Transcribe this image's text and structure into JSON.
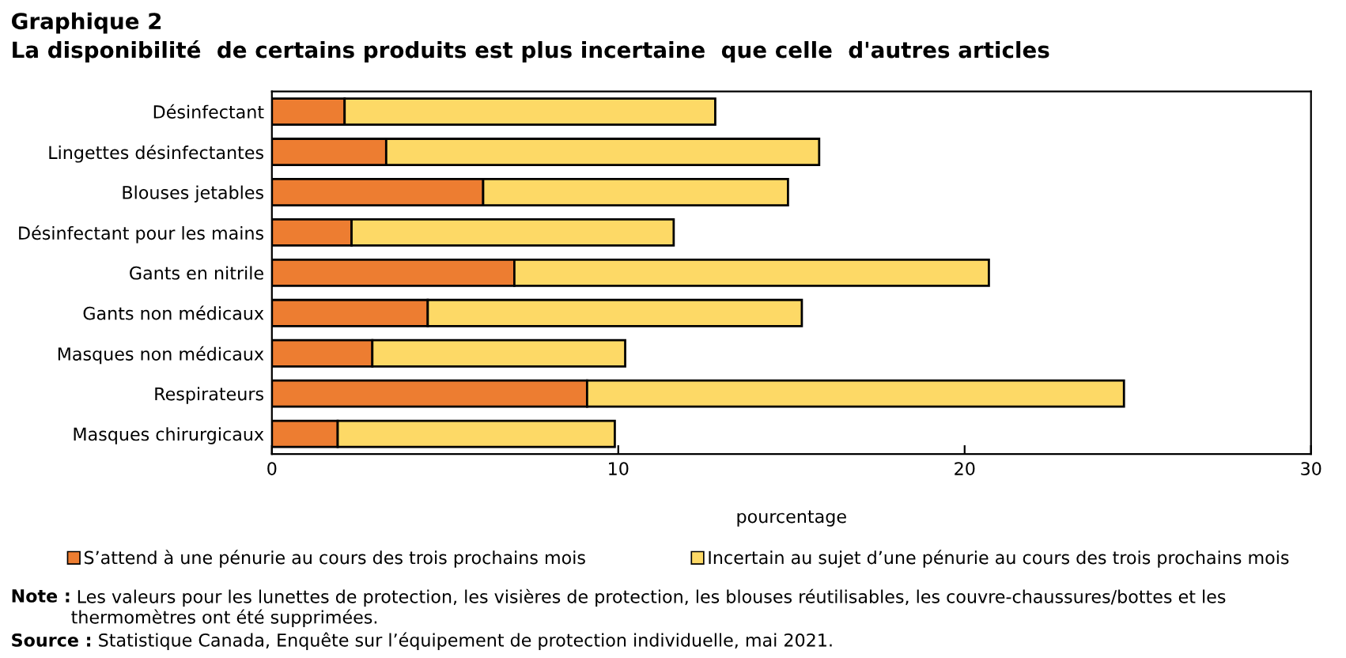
{
  "chart_data": {
    "type": "bar",
    "orientation": "horizontal",
    "stacked": true,
    "title": "Graphique 2",
    "subtitle": "La disponibilité  de certains produits est plus incertaine  que celle  d'autres articles",
    "categories": [
      "Désinfectant",
      "Lingettes désinfectantes",
      "Blouses jetables",
      "Désinfectant pour les mains",
      "Gants en nitrile",
      "Gants non médicaux",
      "Masques non médicaux",
      "Respirateurs",
      "Masques chirurgicaux"
    ],
    "series": [
      {
        "name": "S’attend à une pénurie au cours des trois prochains mois",
        "color": "#ed7d31",
        "values": [
          2.1,
          3.3,
          6.1,
          2.3,
          7.0,
          4.5,
          2.9,
          9.1,
          1.9
        ]
      },
      {
        "name": "Incertain au sujet d’une pénurie au cours des trois prochains mois",
        "color": "#fdd966",
        "values": [
          10.7,
          12.5,
          8.8,
          9.3,
          13.7,
          10.8,
          7.3,
          15.5,
          8.0
        ]
      }
    ],
    "xlabel": "pourcentage",
    "xlim": [
      0,
      30
    ],
    "xticks": [
      0,
      10,
      20,
      30
    ],
    "grid": false,
    "legend": "bottom",
    "annotations": [
      "Note : Les valeurs pour les lunettes de protection, les visières de protection, les blouses réutilisables, les couvre-chaussures/bottes et les thermomètres ont été supprimées.",
      "Source : Statistique Canada, Enquête sur l’équipement de protection individuelle, mai 2021."
    ]
  }
}
